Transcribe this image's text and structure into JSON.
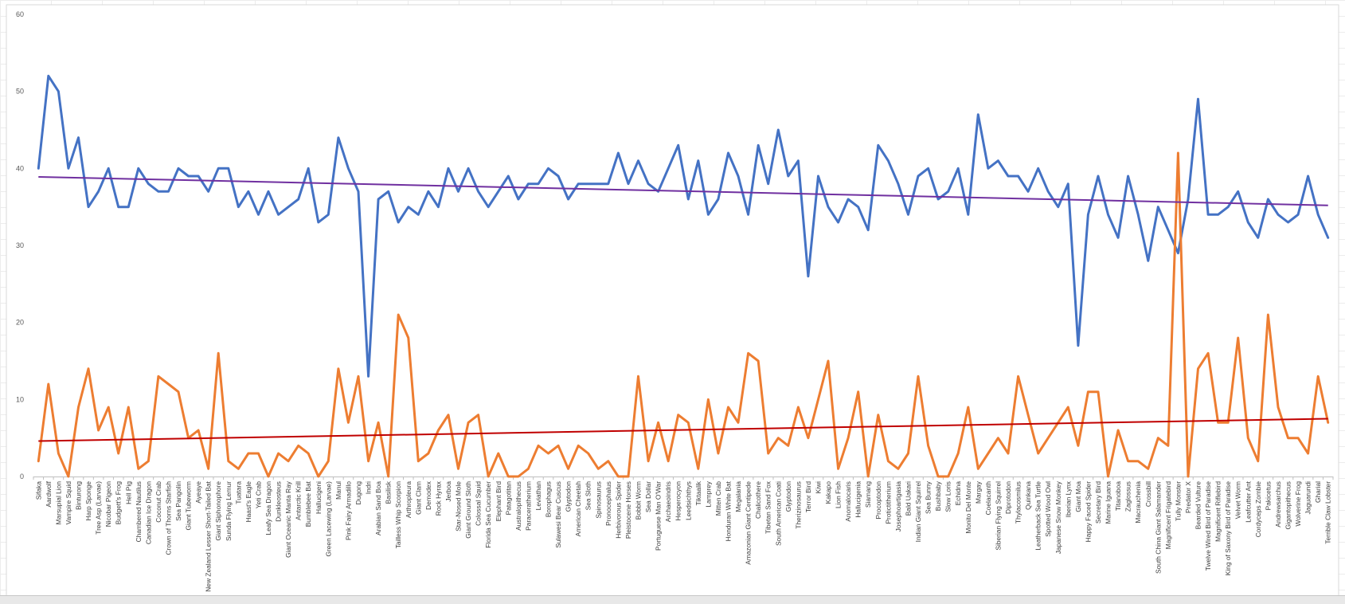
{
  "chart_data": {
    "type": "line",
    "ylim": [
      0,
      60
    ],
    "yticks": [
      0,
      10,
      20,
      30,
      40,
      50,
      60
    ],
    "grid": false,
    "legend": "none",
    "categories": [
      "Sifaka",
      "Aardwolf",
      "Marsupial Lion",
      "Vampire Squid",
      "Binturong",
      "Harp Sponge",
      "Tree Asp (Larvae)",
      "Nicobar Pigeon",
      "Budgett's Frog",
      "Hell Pig",
      "Chambered Nautilus",
      "Canadian Ice Dragon",
      "Coconut Crab",
      "Crown of Thorns Starfish",
      "Sea Pangolin",
      "Giant Tubeworm",
      "Ayeaye",
      "New Zealand Lesser Short-Tailed Bat",
      "Giant Siphonophore",
      "Sunda Flying Lemur",
      "Tuatara",
      "Haast's Eagle",
      "Yeti Crab",
      "Leafy Sea Dragon",
      "Dunkleosteus",
      "Giant Oceanic Manta Ray",
      "Antarctic Krill",
      "Bumblebee Bat",
      "Hallucigeni",
      "Green Lacewing (Larvae)",
      "Manul",
      "Pink Fairy Armadillo",
      "Dugong",
      "Indri",
      "Arabian Sand Boa",
      "Basilisk",
      "Tailless Whip Scorpion",
      "Arthropleura",
      "Giant Clam",
      "Demodex",
      "Rock Hyrax",
      "Jerboa",
      "Star-Nosed Mole",
      "Giant Ground Sloth",
      "Colossal Squid",
      "Florida Sea Cucumber",
      "Elephant Bird",
      "Patagotitan",
      "Australopithecus",
      "Paraceratherium",
      "Leviathan",
      "Borophagus",
      "Sulawesi Bear Cuscus",
      "Glyptodon",
      "American Cheetah",
      "Sea Sloth",
      "Spinosaurus",
      "Pronocephalus",
      "Herbivorous Spider",
      "Pleistocene Horses",
      "Bobbit Worm",
      "Sea Dollar",
      "Portuguese Man O'War",
      "Archaeoindris",
      "Hesperocyon",
      "Leedsichthys",
      "Tiktaalik",
      "Lamprey",
      "Mitten Crab",
      "Honduran White Bat",
      "Megalania",
      "Amazonian Giant Centipede",
      "Chalicothere",
      "Tibetan Sand Fox",
      "South American Coati",
      "Glyptodon",
      "Therizinosaurus",
      "Terror Bird",
      "Kiwi",
      "Kakapo",
      "Lion Fish",
      "Anomalocaris",
      "Hallucigenia",
      "Siamang",
      "Procoptodon",
      "Protictitherium",
      "Josephoartigasia",
      "Bald Uakari",
      "Indian Giant Squirrel",
      "Sea Bunny",
      "Bushbaby",
      "Slow Loris",
      "Echidna",
      "Monito Del Monte",
      "Margay",
      "Coelacanth",
      "Siberian Flying Squirrel",
      "Diprotodon",
      "Thylacosmilus",
      "Quinkana",
      "Leatherback Sea Turtle",
      "Spotted Wood Owl",
      "Japanese Snow Monkey",
      "Iberian Lynx",
      "Giant Moa",
      "Happy Faced Spider",
      "Secretary Bird",
      "Marine Iguana",
      "Titanoboa",
      "Zaglossus",
      "Macrauchenia",
      "Crossbill",
      "South China Giant Salamander",
      "Magnificent Frigatebird",
      "Tully Monster",
      "Predator X",
      "Bearded Vulture",
      "Twelve Wired Bird of Paradise",
      "Magnificent Riflebird",
      "King of Saxony Bird of Paradise",
      "Velvet Worm",
      "Leafcutter Ant",
      "Cordyceps Zombie",
      "Pakicetus",
      "Andrewsarchus",
      "Gigantopithecus",
      "Wolverine Frog",
      "Jaguarundi",
      "Gharial",
      "Terrible Claw Lobster"
    ],
    "series": [
      {
        "color": "#4472c4",
        "values": [
          40,
          52,
          50,
          40,
          44,
          35,
          37,
          40,
          35,
          35,
          40,
          38,
          37,
          37,
          40,
          39,
          39,
          37,
          40,
          40,
          35,
          37,
          34,
          37,
          34,
          35,
          36,
          40,
          33,
          34,
          44,
          40,
          37,
          13,
          36,
          37,
          33,
          35,
          34,
          37,
          35,
          40,
          37,
          40,
          37,
          35,
          37,
          39,
          36,
          38,
          38,
          40,
          39,
          36,
          38,
          38,
          38,
          38,
          42,
          38,
          41,
          38,
          37,
          40,
          43,
          36,
          41,
          34,
          36,
          42,
          39,
          34,
          43,
          38,
          45,
          39,
          41,
          26,
          39,
          35,
          33,
          36,
          35,
          32,
          43,
          41,
          38,
          34,
          39,
          40,
          36,
          37,
          40,
          34,
          47,
          40,
          41,
          39,
          39,
          37,
          40,
          37,
          35,
          38,
          17,
          34,
          39,
          34,
          31,
          39,
          34,
          28,
          35,
          32,
          29,
          36,
          49,
          34,
          34,
          35,
          37,
          33,
          31,
          36,
          34,
          33,
          34,
          39,
          34,
          31
        ]
      },
      {
        "color": "#ed7d31",
        "values": [
          2,
          12,
          3,
          0,
          9,
          14,
          6,
          9,
          3,
          9,
          1,
          2,
          13,
          12,
          11,
          5,
          6,
          1,
          16,
          2,
          1,
          3,
          3,
          0,
          3,
          2,
          4,
          3,
          0,
          2,
          14,
          7,
          13,
          2,
          7,
          0,
          21,
          18,
          2,
          3,
          6,
          8,
          1,
          7,
          8,
          0,
          3,
          0,
          0,
          1,
          4,
          3,
          4,
          1,
          4,
          3,
          1,
          2,
          0,
          0,
          13,
          2,
          7,
          2,
          8,
          7,
          1,
          10,
          3,
          9,
          7,
          16,
          15,
          3,
          5,
          4,
          9,
          5,
          10,
          15,
          1,
          5,
          11,
          0,
          8,
          2,
          1,
          3,
          13,
          4,
          0,
          0,
          3,
          9,
          1,
          3,
          5,
          3,
          13,
          8,
          3,
          5,
          7,
          9,
          4,
          11,
          11,
          0,
          6,
          2,
          2,
          1,
          5,
          4,
          42,
          0,
          14,
          16,
          7,
          7,
          18,
          5,
          2,
          21,
          9,
          5,
          5,
          3,
          13,
          7
        ]
      }
    ],
    "trendlines": [
      {
        "color": "#7030a0",
        "start": 38.9,
        "end": 35.2
      },
      {
        "color": "#c00000",
        "start": 4.6,
        "end": 7.5
      }
    ]
  }
}
